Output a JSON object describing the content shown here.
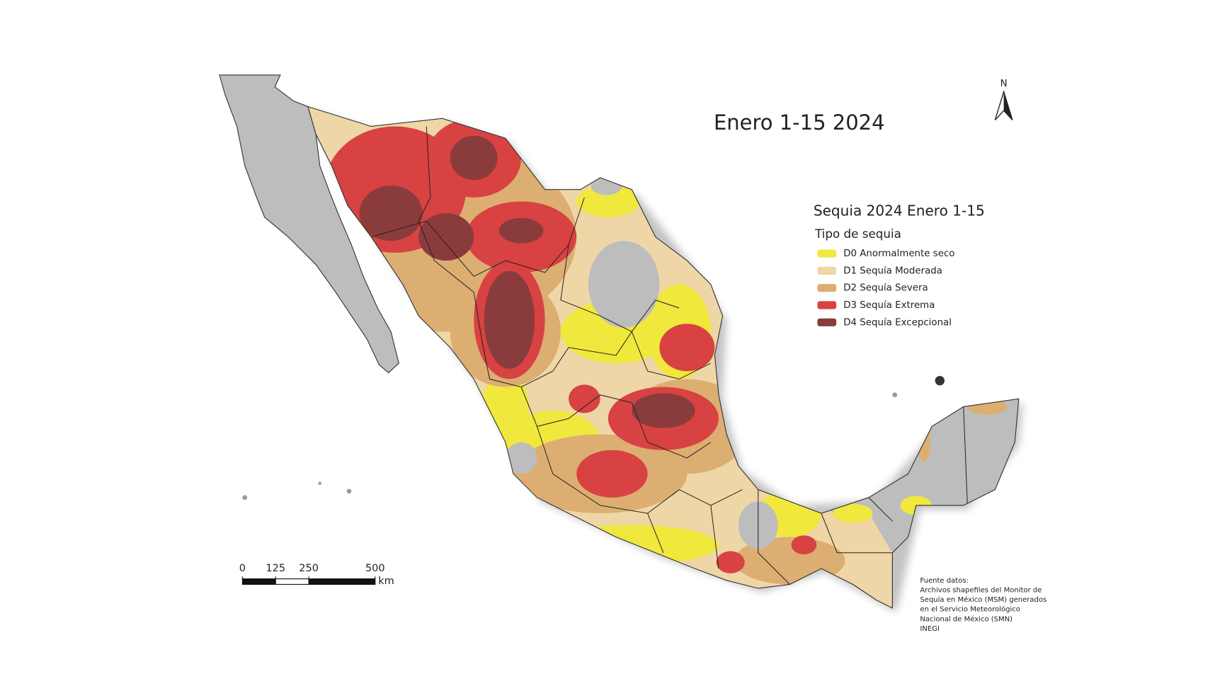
{
  "map": {
    "title": "Enero 1-15 2024",
    "north": "N",
    "legend": {
      "title": "Sequia 2024 Enero 1-15",
      "subtitle": "Tipo de sequia",
      "items": [
        {
          "label": "D0 Anormalmente seco",
          "color": "#f0e83c"
        },
        {
          "label": "D1 Sequía Moderada",
          "color": "#efd6a6"
        },
        {
          "label": "D2 Sequía Severa",
          "color": "#dcae72"
        },
        {
          "label": "D3 Sequía Extrema",
          "color": "#d84242"
        },
        {
          "label": "D4 Sequía Excepcional",
          "color": "#8a3c3c"
        }
      ]
    },
    "scale_bar": {
      "ticks": [
        0,
        125,
        250,
        500
      ],
      "unit": "km"
    },
    "source": [
      "Fuente datos:",
      "Archivos shapefiles del Monitor de",
      "Sequía en México (MSM) generados",
      "en el Servicio Meteorológico",
      "Nacional de México (SMN)",
      "INEGI"
    ]
  }
}
